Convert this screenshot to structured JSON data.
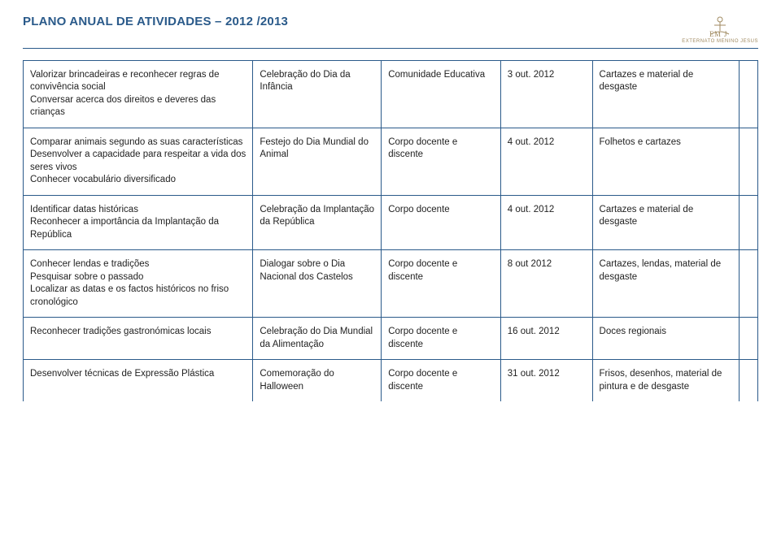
{
  "header": {
    "title": "PLANO ANUAL DE ATIVIDADES – 2012 /2013",
    "logo_text": "EXTERNATO MENINO JESUS"
  },
  "rows": [
    {
      "c0": "Valorizar brincadeiras e reconhecer regras de convivência social\nConversar acerca dos direitos e deveres das crianças",
      "c1": "Celebração do Dia da Infância",
      "c2": "Comunidade Educativa",
      "c3": "3 out. 2012",
      "c4": "Cartazes e material de desgaste"
    },
    {
      "c0": "Comparar animais segundo as suas características\nDesenvolver a capacidade para respeitar a vida dos seres vivos\nConhecer vocabulário diversificado",
      "c1": "Festejo do Dia Mundial do Animal",
      "c2": "Corpo docente e discente",
      "c3": "4 out. 2012",
      "c4": "Folhetos e cartazes"
    },
    {
      "c0": "Identificar datas históricas\nReconhecer a importância da Implantação da República",
      "c1": "Celebração da Implantação da República",
      "c2": "Corpo docente",
      "c3": "4 out. 2012",
      "c4": "Cartazes e material de desgaste"
    },
    {
      "c0": "Conhecer lendas e tradições\nPesquisar sobre o passado\nLocalizar as datas e os factos históricos no friso cronológico",
      "c1": "Dialogar sobre o Dia Nacional dos Castelos",
      "c2": "Corpo docente e discente",
      "c3": "8 out 2012",
      "c4": "Cartazes, lendas, material de desgaste"
    },
    {
      "c0": "Reconhecer tradições gastronómicas locais",
      "c1": "Celebração do Dia Mundial da Alimentação",
      "c2": "Corpo docente e discente",
      "c3": "16 out. 2012",
      "c4": "Doces regionais"
    },
    {
      "c0": "Desenvolver técnicas de Expressão Plástica",
      "c1": "Comemoração do Halloween",
      "c2": "Corpo docente e discente",
      "c3": "31 out. 2012",
      "c4": "Frisos, desenhos, material de pintura e de desgaste"
    }
  ],
  "colors": {
    "accent": "#2a5a8a",
    "gold": "#a08a60"
  }
}
